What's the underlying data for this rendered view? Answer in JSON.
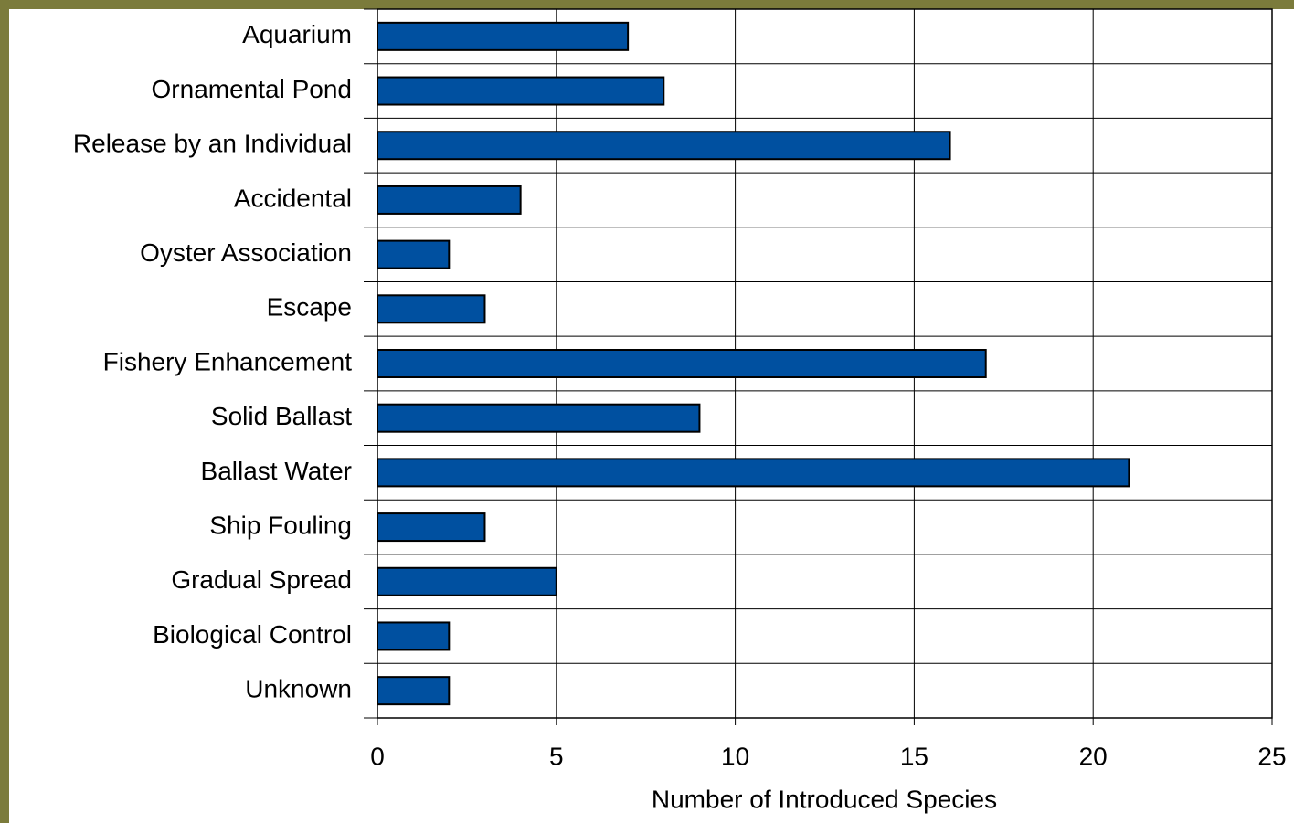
{
  "chart_data": {
    "type": "bar",
    "orientation": "horizontal",
    "x_label": "Number of Introduced Species",
    "categories": [
      "Aquarium",
      "Ornamental Pond",
      "Release by an Individual",
      "Accidental",
      "Oyster Association",
      "Escape",
      "Fishery Enhancement",
      "Solid Ballast",
      "Ballast Water",
      "Ship Fouling",
      "Gradual Spread",
      "Biological Control",
      "Unknown"
    ],
    "values": [
      7,
      8,
      16,
      4,
      2,
      3,
      17,
      9,
      21,
      3,
      5,
      2,
      2
    ],
    "color": "#0050a0",
    "xlim": [
      0,
      25
    ],
    "xticks": [
      0,
      5,
      10,
      15,
      20,
      25
    ],
    "grid": true
  }
}
